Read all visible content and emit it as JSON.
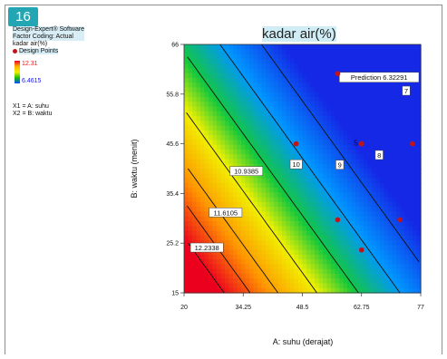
{
  "badge": "16",
  "legend": {
    "software": "Design-Expert® Software",
    "coding": "Factor Coding: Actual",
    "response": "kadar air(%)",
    "points": "Design Points",
    "hi": "12.31",
    "lo": "6.4615",
    "x1": "X1 = A: suhu",
    "x2": "X2 = B: waktu"
  },
  "colors": {
    "point": "#c0141b",
    "hi": "#e81a1a",
    "lo": "#1a1ae8"
  },
  "chart_data": {
    "type": "contour",
    "title": "kadar air(%)",
    "xlabel": "A: suhu (derajat)",
    "ylabel": "B: waktu (menit)",
    "xlim": [
      20,
      77
    ],
    "ylim": [
      15,
      66
    ],
    "xticks": [
      "20",
      "34.25",
      "48.5",
      "62.75",
      "77"
    ],
    "yticks": [
      "15",
      "25.2",
      "35.4",
      "45.6",
      "55.8",
      "66"
    ],
    "color_range": [
      6.4615,
      12.31
    ],
    "contours": [
      {
        "label": "12.2338",
        "value": 12.2338,
        "lx": 25.5,
        "ly": 24.3
      },
      {
        "label": "11.6105",
        "value": 11.6105,
        "lx": 30.0,
        "ly": 31.5
      },
      {
        "label": "10.9385",
        "value": 10.9385,
        "lx": 35.0,
        "ly": 40.0
      },
      {
        "label": "10",
        "value": 10.0,
        "lx": 47.0,
        "ly": 41.4
      },
      {
        "label": "9",
        "value": 9.0,
        "lx": 57.5,
        "ly": 41.3
      },
      {
        "label": "8",
        "value": 8.0,
        "lx": 67.0,
        "ly": 43.3
      },
      {
        "label": "7",
        "value": 7.0,
        "lx": 73.5,
        "ly": 56.5
      }
    ],
    "points": [
      {
        "x": 57.0,
        "y": 60.0
      },
      {
        "x": 47.0,
        "y": 45.6
      },
      {
        "x": 62.75,
        "y": 45.6
      },
      {
        "x": 62.75,
        "y": 45.6
      },
      {
        "x": 75.0,
        "y": 45.6
      },
      {
        "x": 57.0,
        "y": 30.0
      },
      {
        "x": 72.0,
        "y": 30.0
      },
      {
        "x": 62.75,
        "y": 23.8
      }
    ],
    "replicate_label": {
      "text": "5",
      "x": 62.75,
      "y": 45.6
    },
    "prediction": {
      "label": "Prediction",
      "value": "6.32291",
      "x": 77,
      "y": 64
    }
  }
}
